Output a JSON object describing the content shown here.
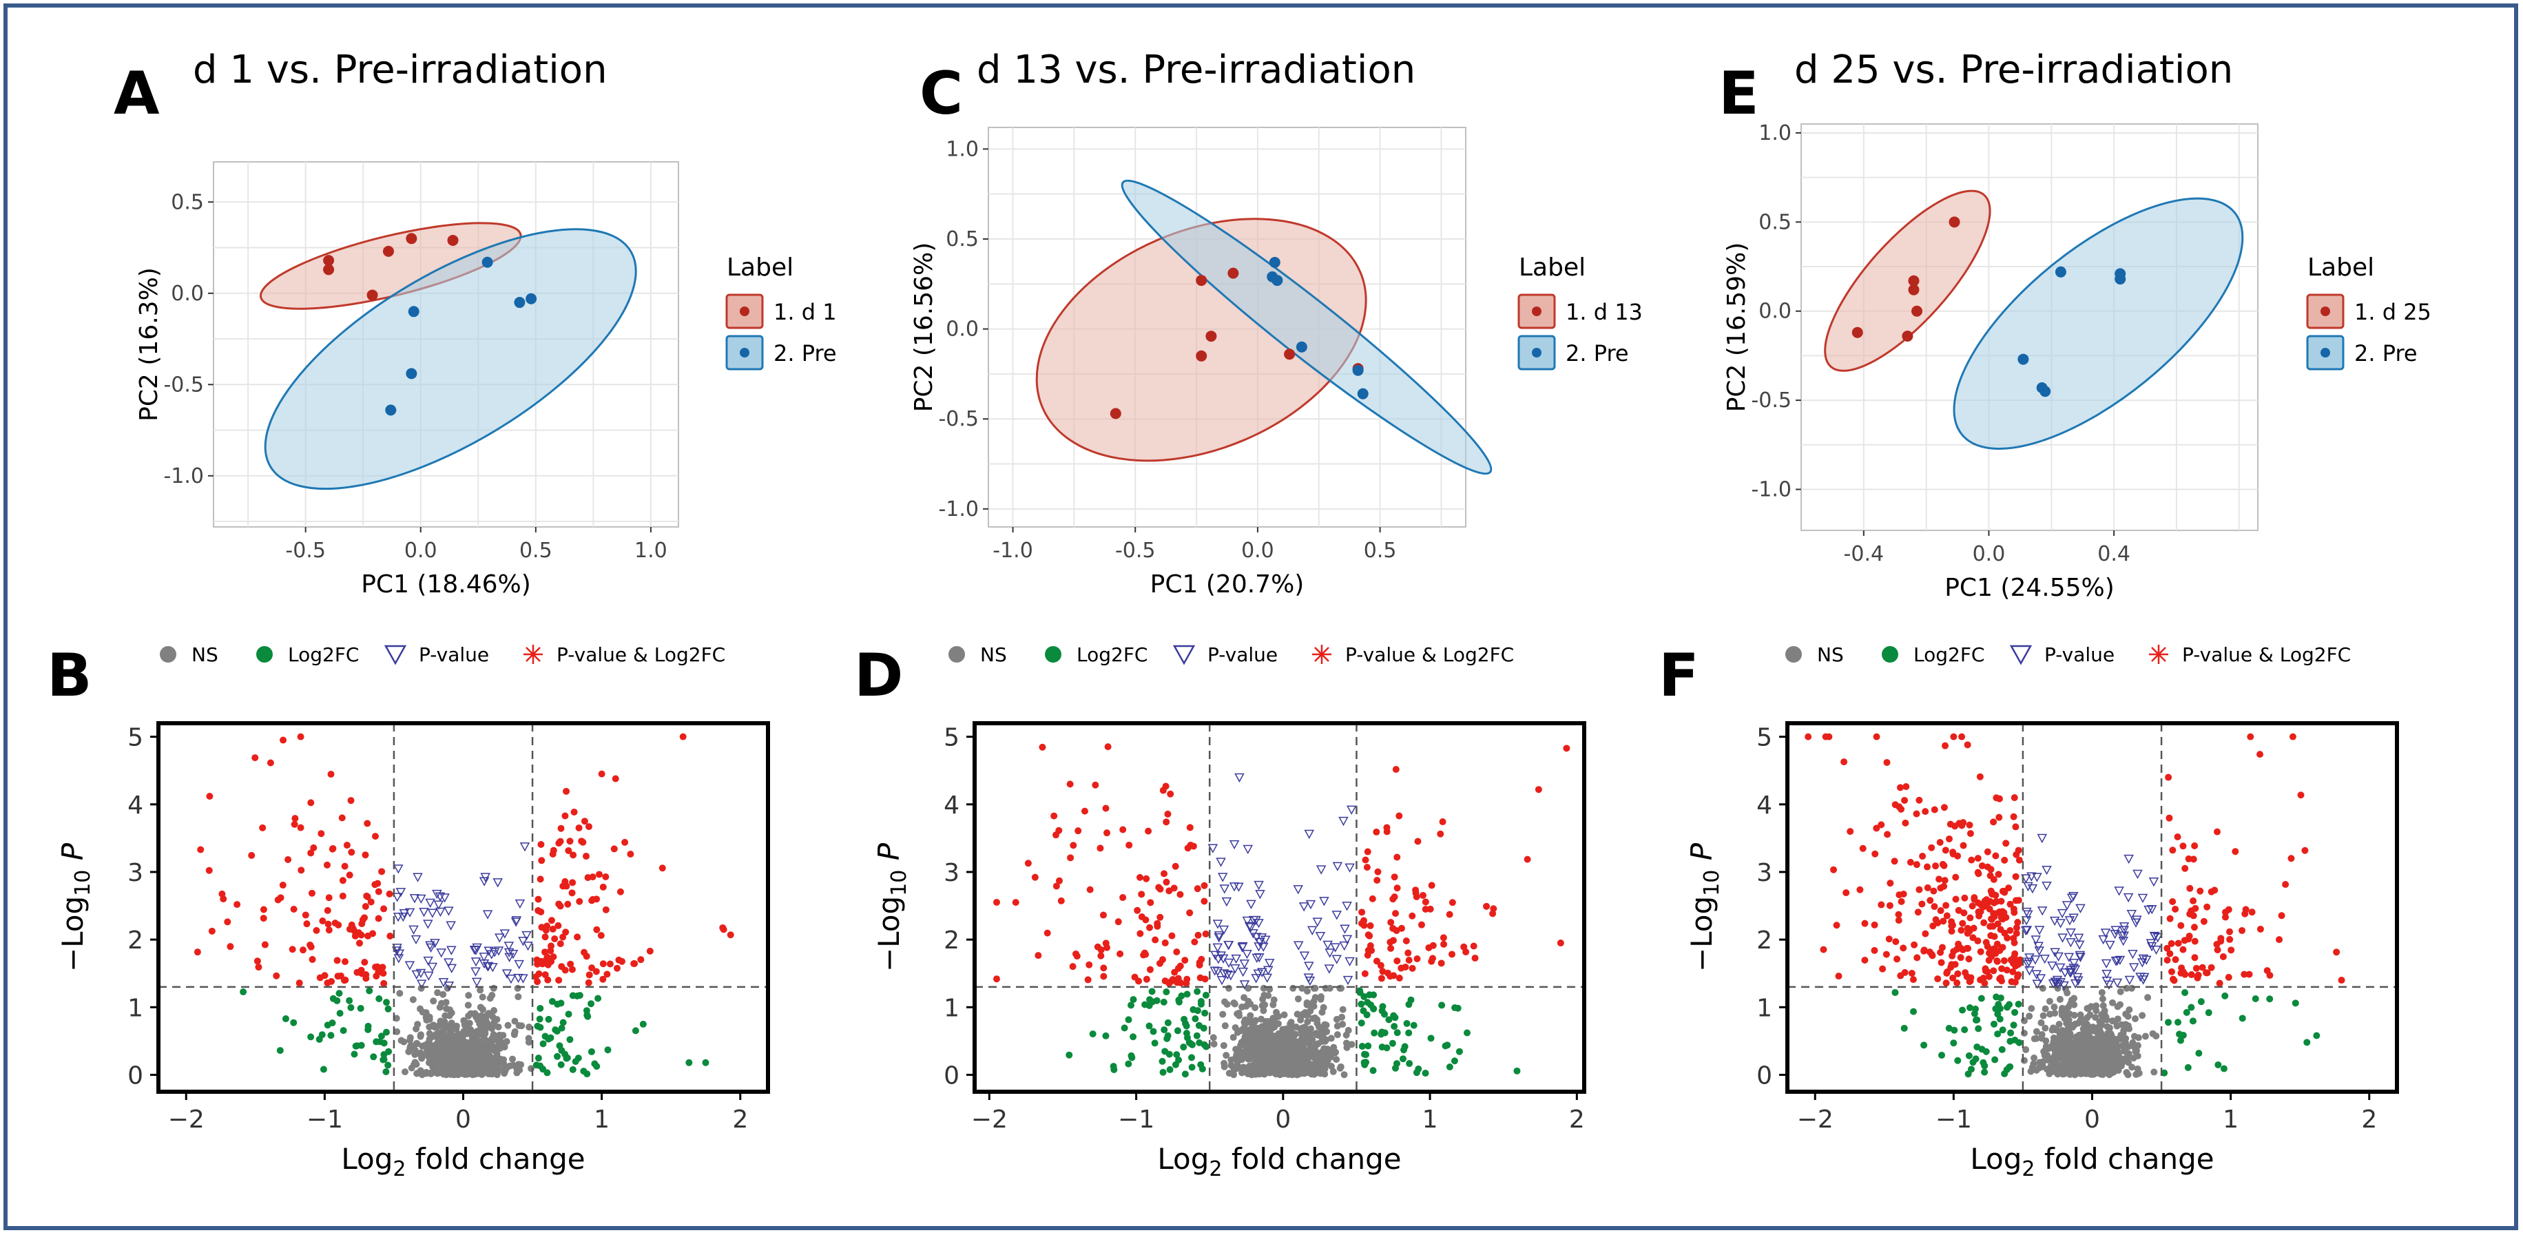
{
  "panel_letters": [
    "A",
    "B",
    "C",
    "D",
    "E",
    "F"
  ],
  "colors": {
    "frame": "#3a5a8c",
    "d_fill": "#e8b4aa",
    "d_stroke": "#c0392b",
    "d_point": "#b5271c",
    "pre_fill": "#a9cfe4",
    "pre_stroke": "#1f78b4",
    "pre_point": "#1565a8",
    "ns": "#808080",
    "log2fc": "#0a8a3c",
    "pval": "#3b3b9e",
    "both": "#e8201a",
    "grid": "#e6e6e6"
  },
  "volcano_legend": [
    "NS",
    "Log2FC",
    "P-value",
    "P-value & Log2FC"
  ],
  "chart_data": [
    {
      "type": "scatter",
      "panel": "A",
      "title": "d 1 vs. Pre-irradiation",
      "xlabel": "PC1 (18.46%)",
      "ylabel": "PC2 (16.3%)",
      "xlim": [
        -0.9,
        1.12
      ],
      "ylim": [
        -1.28,
        0.72
      ],
      "xticks": [
        -0.5,
        0.0,
        0.5,
        1.0
      ],
      "xtick_labels": [
        "-0.5",
        "0.0",
        "0.5",
        "1.0"
      ],
      "yticks": [
        -1.0,
        -0.5,
        0.0,
        0.5
      ],
      "ytick_labels": [
        "-1.0",
        "-0.5",
        "0.0",
        "0.5"
      ],
      "legend_title": "Label",
      "series": [
        {
          "name": "1. d 1",
          "group": "d",
          "points": [
            [
              -0.4,
              0.18
            ],
            [
              -0.4,
              0.13
            ],
            [
              -0.21,
              -0.01
            ],
            [
              -0.14,
              0.23
            ],
            [
              -0.04,
              0.3
            ],
            [
              0.14,
              0.29
            ]
          ],
          "ellipse": {
            "cx": -0.13,
            "cy": 0.15,
            "rx": 0.59,
            "ry": 0.16,
            "angle": 17
          }
        },
        {
          "name": "2. Pre",
          "group": "pre",
          "points": [
            [
              -0.13,
              -0.64
            ],
            [
              -0.04,
              -0.44
            ],
            [
              -0.03,
              -0.1
            ],
            [
              0.29,
              0.17
            ],
            [
              0.43,
              -0.05
            ],
            [
              0.48,
              -0.03
            ]
          ],
          "ellipse": {
            "cx": 0.13,
            "cy": -0.36,
            "rx": 0.98,
            "ry": 0.42,
            "angle": 37
          }
        }
      ]
    },
    {
      "type": "scatter",
      "panel": "C",
      "title": "d 13 vs. Pre-irradiation",
      "xlabel": "PC1 (20.7%)",
      "ylabel": "PC2 (16.56%)",
      "xlim": [
        -1.1,
        0.85
      ],
      "ylim": [
        -1.1,
        1.12
      ],
      "xticks": [
        -1.0,
        -0.5,
        0.0,
        0.5
      ],
      "xtick_labels": [
        "-1.0",
        "-0.5",
        "0.0",
        "0.5"
      ],
      "yticks": [
        -1.0,
        -0.5,
        0.0,
        0.5,
        1.0
      ],
      "ytick_labels": [
        "-1.0",
        "-0.5",
        "0.0",
        "0.5",
        "1.0"
      ],
      "legend_title": "Label",
      "series": [
        {
          "name": "1. d 13",
          "group": "d",
          "points": [
            [
              -0.58,
              -0.47
            ],
            [
              -0.23,
              0.27
            ],
            [
              -0.23,
              -0.15
            ],
            [
              -0.19,
              -0.04
            ],
            [
              -0.1,
              0.31
            ],
            [
              0.13,
              -0.14
            ],
            [
              0.41,
              -0.22
            ]
          ],
          "ellipse": {
            "cx": -0.23,
            "cy": -0.06,
            "rx": 0.75,
            "ry": 0.55,
            "angle": 30
          }
        },
        {
          "name": "2. Pre",
          "group": "pre",
          "points": [
            [
              0.06,
              0.29
            ],
            [
              0.07,
              0.37
            ],
            [
              0.08,
              0.27
            ],
            [
              0.18,
              -0.1
            ],
            [
              0.41,
              -0.23
            ],
            [
              0.43,
              -0.36
            ]
          ],
          "ellipse": {
            "cx": 0.2,
            "cy": 0.01,
            "rx": 1.1,
            "ry": 0.13,
            "angle": -47
          }
        }
      ]
    },
    {
      "type": "scatter",
      "panel": "E",
      "title": "d 25 vs. Pre-irradiation",
      "xlabel": "PC1 (24.55%)",
      "ylabel": "PC2 (16.59%)",
      "xlim": [
        -0.6,
        0.86
      ],
      "ylim": [
        -1.23,
        1.05
      ],
      "xticks": [
        -0.4,
        0.0,
        0.4
      ],
      "xtick_labels": [
        "-0.4",
        "0.0",
        "0.4"
      ],
      "yticks": [
        -1.0,
        -0.5,
        0.0,
        0.5,
        1.0
      ],
      "ytick_labels": [
        "-1.0",
        "-0.5",
        "0.0",
        "0.5",
        "1.0"
      ],
      "legend_title": "Label",
      "series": [
        {
          "name": "1. d 25",
          "group": "d",
          "points": [
            [
              -0.42,
              -0.12
            ],
            [
              -0.26,
              -0.14
            ],
            [
              -0.24,
              0.17
            ],
            [
              -0.24,
              0.12
            ],
            [
              -0.23,
              0.0
            ],
            [
              -0.11,
              0.5
            ]
          ],
          "ellipse": {
            "cx": -0.26,
            "cy": 0.17,
            "rx": 0.54,
            "ry": 0.14,
            "angle": 63
          }
        },
        {
          "name": "2. Pre",
          "group": "pre",
          "points": [
            [
              0.11,
              -0.27
            ],
            [
              0.17,
              -0.43
            ],
            [
              0.18,
              -0.45
            ],
            [
              0.23,
              0.22
            ],
            [
              0.42,
              0.21
            ],
            [
              0.42,
              0.18
            ]
          ],
          "ellipse": {
            "cx": 0.35,
            "cy": -0.07,
            "rx": 0.76,
            "ry": 0.27,
            "angle": 55
          }
        }
      ]
    },
    {
      "type": "scatter",
      "panel": "B",
      "subtype": "volcano",
      "xlabel": "Log2 fold change",
      "ylabel": "−Log10 P",
      "xlim": [
        -2.2,
        2.2
      ],
      "ylim": [
        -0.25,
        5.2
      ],
      "xticks": [
        -2,
        -1,
        0,
        1,
        2
      ],
      "yticks": [
        0,
        1,
        2,
        3,
        4,
        5
      ],
      "fc_cutoff": 0.5,
      "p_cutoff": 1.3,
      "categories": [
        "NS",
        "Log2FC",
        "P-value",
        "P-value & Log2FC"
      ],
      "counts": {
        "ns": 650,
        "log2fc": 90,
        "pval": 80,
        "both": 215
      },
      "bias": 0.0,
      "seed": 11,
      "highlight_points": [
        [
          -1.83,
          4.12
        ],
        [
          -1.3,
          4.95
        ],
        [
          1.93,
          2.07
        ],
        [
          1.88,
          2.15
        ],
        [
          1.75,
          0.18
        ],
        [
          1.63,
          0.18
        ],
        [
          1.1,
          4.38
        ],
        [
          1.0,
          4.45
        ]
      ]
    },
    {
      "type": "scatter",
      "panel": "D",
      "subtype": "volcano",
      "xlabel": "Log2 fold change",
      "ylabel": "−Log10 P",
      "xlim": [
        -2.1,
        2.05
      ],
      "ylim": [
        -0.25,
        5.2
      ],
      "xticks": [
        -2,
        -1,
        0,
        1,
        2
      ],
      "yticks": [
        0,
        1,
        2,
        3,
        4,
        5
      ],
      "fc_cutoff": 0.5,
      "p_cutoff": 1.3,
      "categories": [
        "NS",
        "Log2FC",
        "P-value",
        "P-value & Log2FC"
      ],
      "counts": {
        "ns": 850,
        "log2fc": 130,
        "pval": 90,
        "both": 190
      },
      "bias": -0.3,
      "seed": 29,
      "highlight_points": [
        [
          1.93,
          4.83
        ],
        [
          1.74,
          4.22
        ],
        [
          1.89,
          1.95
        ],
        [
          0.79,
          3.83
        ],
        [
          -1.82,
          2.55
        ],
        [
          -1.45,
          4.3
        ],
        [
          -1.35,
          3.9
        ]
      ]
    },
    {
      "type": "scatter",
      "panel": "F",
      "subtype": "volcano",
      "xlabel": "Log2 fold change",
      "ylabel": "−Log10 P",
      "xlim": [
        -2.2,
        2.2
      ],
      "ylim": [
        -0.25,
        5.2
      ],
      "xticks": [
        -2,
        -1,
        0,
        1,
        2
      ],
      "yticks": [
        0,
        1,
        2,
        3,
        4,
        5
      ],
      "fc_cutoff": 0.5,
      "p_cutoff": 1.3,
      "categories": [
        "NS",
        "Log2FC",
        "P-value",
        "P-value & Log2FC"
      ],
      "counts": {
        "ns": 800,
        "log2fc": 75,
        "pval": 110,
        "both": 360
      },
      "bias": -0.55,
      "seed": 53,
      "highlight_points": [
        [
          -1.9,
          5.0
        ],
        [
          -1.0,
          5.0
        ],
        [
          0.55,
          4.4
        ],
        [
          1.35,
          2.0
        ],
        [
          1.8,
          1.4
        ],
        [
          1.62,
          0.58
        ],
        [
          1.55,
          0.48
        ]
      ]
    }
  ]
}
